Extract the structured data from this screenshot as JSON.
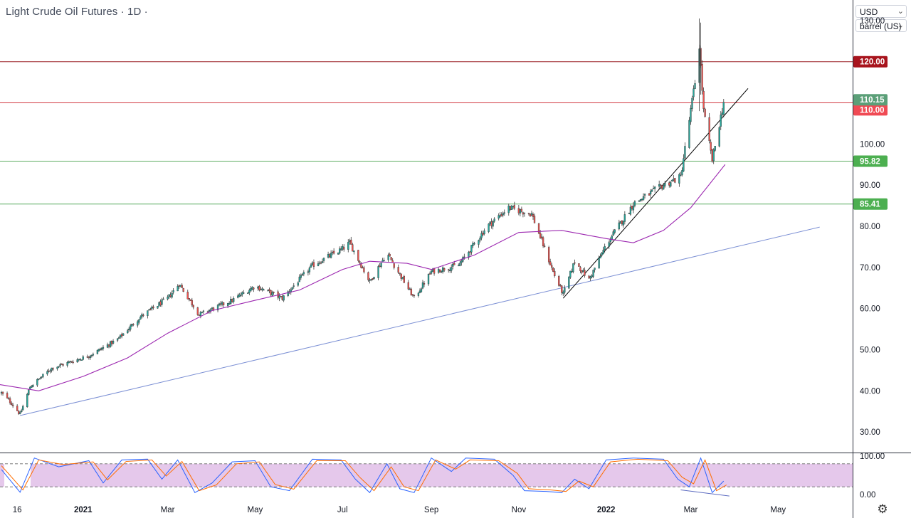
{
  "header": {
    "title": "Light Crude Oil Futures · 1D ·"
  },
  "scale_controls": {
    "currency": "USD",
    "unit": "barrel (US)",
    "chevron_icon": "chevron-down-icon"
  },
  "footer": {
    "settings_icon": "gear-icon"
  },
  "colors": {
    "up_candle": "#26a69a",
    "down_candle": "#ef5350",
    "candle_wick": "#3a3a3a",
    "moving_average": "#9c27b0",
    "resistance_line": "#8e0f16",
    "support_line": "#43a047",
    "trend_line_long": "#7b8fd4",
    "trend_line_short": "#000000",
    "stoch_k": "#2962ff",
    "stoch_d": "#ff6d00",
    "stoch_band": "#e1bee7"
  },
  "chart_data": [
    {
      "type": "candlestick",
      "title": "Light Crude Oil Futures · 1D ·",
      "ylim": [
        25,
        135
      ],
      "y_ticks": [
        "130.00",
        "120.00",
        "110.00",
        "100.00",
        "90.00",
        "80.00",
        "70.00",
        "60.00",
        "50.00",
        "40.00",
        "30.00"
      ],
      "x_ticks": [
        {
          "label": "16",
          "date": "2020-11-16"
        },
        {
          "label": "2021",
          "date": "2021-01-01"
        },
        {
          "label": "Mar",
          "date": "2021-03-01"
        },
        {
          "label": "May",
          "date": "2021-05-01"
        },
        {
          "label": "Jul",
          "date": "2021-07-01"
        },
        {
          "label": "Sep",
          "date": "2021-09-01"
        },
        {
          "label": "Nov",
          "date": "2021-11-01"
        },
        {
          "label": "2022",
          "date": "2022-01-01"
        },
        {
          "label": "Mar",
          "date": "2022-03-01"
        },
        {
          "label": "May",
          "date": "2022-05-01"
        }
      ],
      "x_range": [
        "2020-11-04",
        "2022-06-22"
      ],
      "price_path": [
        {
          "date": "2020-11-05",
          "close": 39.5
        },
        {
          "date": "2020-11-12",
          "close": 37.0
        },
        {
          "date": "2020-11-18",
          "close": 34.3
        },
        {
          "date": "2020-11-25",
          "close": 41.0
        },
        {
          "date": "2020-12-10",
          "close": 45.5
        },
        {
          "date": "2021-01-05",
          "close": 48.5
        },
        {
          "date": "2021-01-25",
          "close": 52.5
        },
        {
          "date": "2021-02-10",
          "close": 58.0
        },
        {
          "date": "2021-03-01",
          "close": 62.5
        },
        {
          "date": "2021-03-09",
          "close": 66.0
        },
        {
          "date": "2021-03-23",
          "close": 58.5
        },
        {
          "date": "2021-04-15",
          "close": 62.0
        },
        {
          "date": "2021-05-01",
          "close": 65.5
        },
        {
          "date": "2021-05-20",
          "close": 62.5
        },
        {
          "date": "2021-06-10",
          "close": 70.5
        },
        {
          "date": "2021-07-01",
          "close": 74.5
        },
        {
          "date": "2021-07-06",
          "close": 76.0
        },
        {
          "date": "2021-07-20",
          "close": 66.5
        },
        {
          "date": "2021-08-01",
          "close": 73.5
        },
        {
          "date": "2021-08-20",
          "close": 62.5
        },
        {
          "date": "2021-09-01",
          "close": 69.0
        },
        {
          "date": "2021-09-20",
          "close": 70.5
        },
        {
          "date": "2021-10-10",
          "close": 80.0
        },
        {
          "date": "2021-10-25",
          "close": 84.5
        },
        {
          "date": "2021-11-10",
          "close": 83.0
        },
        {
          "date": "2021-11-26",
          "close": 68.0
        },
        {
          "date": "2021-12-02",
          "close": 63.5
        },
        {
          "date": "2021-12-10",
          "close": 71.5
        },
        {
          "date": "2021-12-20",
          "close": 67.0
        },
        {
          "date": "2022-01-01",
          "close": 75.5
        },
        {
          "date": "2022-01-20",
          "close": 85.5
        },
        {
          "date": "2022-02-10",
          "close": 90.0
        },
        {
          "date": "2022-02-22",
          "close": 92.0
        },
        {
          "date": "2022-03-04",
          "close": 115.0
        },
        {
          "date": "2022-03-07",
          "close": 124.0
        },
        {
          "date": "2022-03-10",
          "close": 108.0
        },
        {
          "date": "2022-03-16",
          "close": 96.0
        },
        {
          "date": "2022-03-24",
          "close": 110.15
        }
      ],
      "series": [
        {
          "name": "",
          "kind": "moving_average",
          "points": [
            {
              "date": "2020-11-04",
              "value": 41.5
            },
            {
              "date": "2020-12-01",
              "value": 40.0
            },
            {
              "date": "2021-01-01",
              "value": 43.5
            },
            {
              "date": "2021-02-01",
              "value": 48.0
            },
            {
              "date": "2021-03-01",
              "value": 54.0
            },
            {
              "date": "2021-04-01",
              "value": 59.5
            },
            {
              "date": "2021-05-01",
              "value": 62.0
            },
            {
              "date": "2021-06-01",
              "value": 64.5
            },
            {
              "date": "2021-07-01",
              "value": 69.5
            },
            {
              "date": "2021-07-20",
              "value": 71.5
            },
            {
              "date": "2021-08-15",
              "value": 71.0
            },
            {
              "date": "2021-09-01",
              "value": 69.5
            },
            {
              "date": "2021-10-01",
              "value": 73.0
            },
            {
              "date": "2021-11-01",
              "value": 78.5
            },
            {
              "date": "2021-12-01",
              "value": 79.0
            },
            {
              "date": "2022-01-01",
              "value": 77.0
            },
            {
              "date": "2022-01-20",
              "value": 76.0
            },
            {
              "date": "2022-02-10",
              "value": 79.0
            },
            {
              "date": "2022-03-01",
              "value": 84.5
            },
            {
              "date": "2022-03-25",
              "value": 95.0
            }
          ]
        }
      ],
      "horizontal_levels": [
        {
          "value": 120.0,
          "label": "120.00",
          "role": "resistance"
        },
        {
          "value": 110.0,
          "label": "110.00",
          "role": "resistance"
        },
        {
          "value": 95.82,
          "label": "95.82",
          "role": "support"
        },
        {
          "value": 85.41,
          "label": "85.41",
          "role": "support"
        }
      ],
      "last_price": {
        "value": 110.15,
        "label": "110.15"
      },
      "trend_lines": [
        {
          "role": "long",
          "from": {
            "date": "2020-11-18",
            "value": 34.0
          },
          "to": {
            "date": "2022-05-30",
            "value": 79.8
          }
        },
        {
          "role": "short",
          "from": {
            "date": "2021-12-02",
            "value": 62.5
          },
          "to": {
            "date": "2022-04-10",
            "value": 113.5
          }
        }
      ]
    },
    {
      "type": "line",
      "indicator": "stochastic",
      "ylim": [
        0,
        100
      ],
      "y_ticks": [
        "100.00",
        "0.00"
      ],
      "band": [
        20,
        80
      ],
      "series": [
        {
          "name": "",
          "line": "k",
          "points": [
            {
              "date": "2020-11-05",
              "value": 65
            },
            {
              "date": "2020-11-18",
              "value": 6
            },
            {
              "date": "2020-11-28",
              "value": 95
            },
            {
              "date": "2020-12-15",
              "value": 72
            },
            {
              "date": "2021-01-05",
              "value": 88
            },
            {
              "date": "2021-01-15",
              "value": 30
            },
            {
              "date": "2021-01-28",
              "value": 90
            },
            {
              "date": "2021-02-15",
              "value": 92
            },
            {
              "date": "2021-02-25",
              "value": 40
            },
            {
              "date": "2021-03-08",
              "value": 90
            },
            {
              "date": "2021-03-20",
              "value": 5
            },
            {
              "date": "2021-04-01",
              "value": 30
            },
            {
              "date": "2021-04-15",
              "value": 85
            },
            {
              "date": "2021-05-01",
              "value": 88
            },
            {
              "date": "2021-05-12",
              "value": 20
            },
            {
              "date": "2021-05-25",
              "value": 10
            },
            {
              "date": "2021-06-10",
              "value": 92
            },
            {
              "date": "2021-06-30",
              "value": 90
            },
            {
              "date": "2021-07-10",
              "value": 40
            },
            {
              "date": "2021-07-20",
              "value": 5
            },
            {
              "date": "2021-08-01",
              "value": 80
            },
            {
              "date": "2021-08-10",
              "value": 15
            },
            {
              "date": "2021-08-20",
              "value": 5
            },
            {
              "date": "2021-09-01",
              "value": 95
            },
            {
              "date": "2021-09-15",
              "value": 60
            },
            {
              "date": "2021-09-25",
              "value": 95
            },
            {
              "date": "2021-10-15",
              "value": 92
            },
            {
              "date": "2021-10-28",
              "value": 50
            },
            {
              "date": "2021-11-05",
              "value": 10
            },
            {
              "date": "2021-11-20",
              "value": 8
            },
            {
              "date": "2021-12-01",
              "value": 5
            },
            {
              "date": "2021-12-10",
              "value": 40
            },
            {
              "date": "2021-12-20",
              "value": 15
            },
            {
              "date": "2022-01-01",
              "value": 90
            },
            {
              "date": "2022-01-20",
              "value": 95
            },
            {
              "date": "2022-02-10",
              "value": 92
            },
            {
              "date": "2022-02-20",
              "value": 40
            },
            {
              "date": "2022-02-28",
              "value": 20
            },
            {
              "date": "2022-03-08",
              "value": 95
            },
            {
              "date": "2022-03-16",
              "value": 5
            },
            {
              "date": "2022-03-24",
              "value": 35
            }
          ]
        },
        {
          "name": "",
          "line": "d",
          "points": [
            {
              "date": "2020-11-05",
              "value": 75
            },
            {
              "date": "2020-11-20",
              "value": 12
            },
            {
              "date": "2020-12-01",
              "value": 90
            },
            {
              "date": "2020-12-18",
              "value": 78
            },
            {
              "date": "2021-01-08",
              "value": 85
            },
            {
              "date": "2021-01-18",
              "value": 38
            },
            {
              "date": "2021-01-31",
              "value": 86
            },
            {
              "date": "2021-02-18",
              "value": 90
            },
            {
              "date": "2021-02-28",
              "value": 48
            },
            {
              "date": "2021-03-11",
              "value": 86
            },
            {
              "date": "2021-03-23",
              "value": 10
            },
            {
              "date": "2021-04-04",
              "value": 25
            },
            {
              "date": "2021-04-18",
              "value": 80
            },
            {
              "date": "2021-05-04",
              "value": 85
            },
            {
              "date": "2021-05-15",
              "value": 26
            },
            {
              "date": "2021-05-28",
              "value": 14
            },
            {
              "date": "2021-06-13",
              "value": 88
            },
            {
              "date": "2021-07-03",
              "value": 88
            },
            {
              "date": "2021-07-13",
              "value": 45
            },
            {
              "date": "2021-07-23",
              "value": 10
            },
            {
              "date": "2021-08-04",
              "value": 72
            },
            {
              "date": "2021-08-13",
              "value": 20
            },
            {
              "date": "2021-08-23",
              "value": 10
            },
            {
              "date": "2021-09-04",
              "value": 90
            },
            {
              "date": "2021-09-18",
              "value": 66
            },
            {
              "date": "2021-09-28",
              "value": 90
            },
            {
              "date": "2021-10-18",
              "value": 88
            },
            {
              "date": "2021-10-31",
              "value": 55
            },
            {
              "date": "2021-11-08",
              "value": 15
            },
            {
              "date": "2021-11-23",
              "value": 12
            },
            {
              "date": "2021-12-04",
              "value": 8
            },
            {
              "date": "2021-12-13",
              "value": 35
            },
            {
              "date": "2021-12-23",
              "value": 20
            },
            {
              "date": "2022-01-04",
              "value": 85
            },
            {
              "date": "2022-01-23",
              "value": 92
            },
            {
              "date": "2022-02-13",
              "value": 88
            },
            {
              "date": "2022-02-23",
              "value": 45
            },
            {
              "date": "2022-03-03",
              "value": 28
            },
            {
              "date": "2022-03-11",
              "value": 90
            },
            {
              "date": "2022-03-19",
              "value": 10
            },
            {
              "date": "2022-03-26",
              "value": 25
            }
          ]
        }
      ],
      "trend_lines": [
        {
          "from": {
            "date": "2022-02-22",
            "value": 12
          },
          "to": {
            "date": "2022-03-28",
            "value": -4
          }
        }
      ]
    }
  ]
}
